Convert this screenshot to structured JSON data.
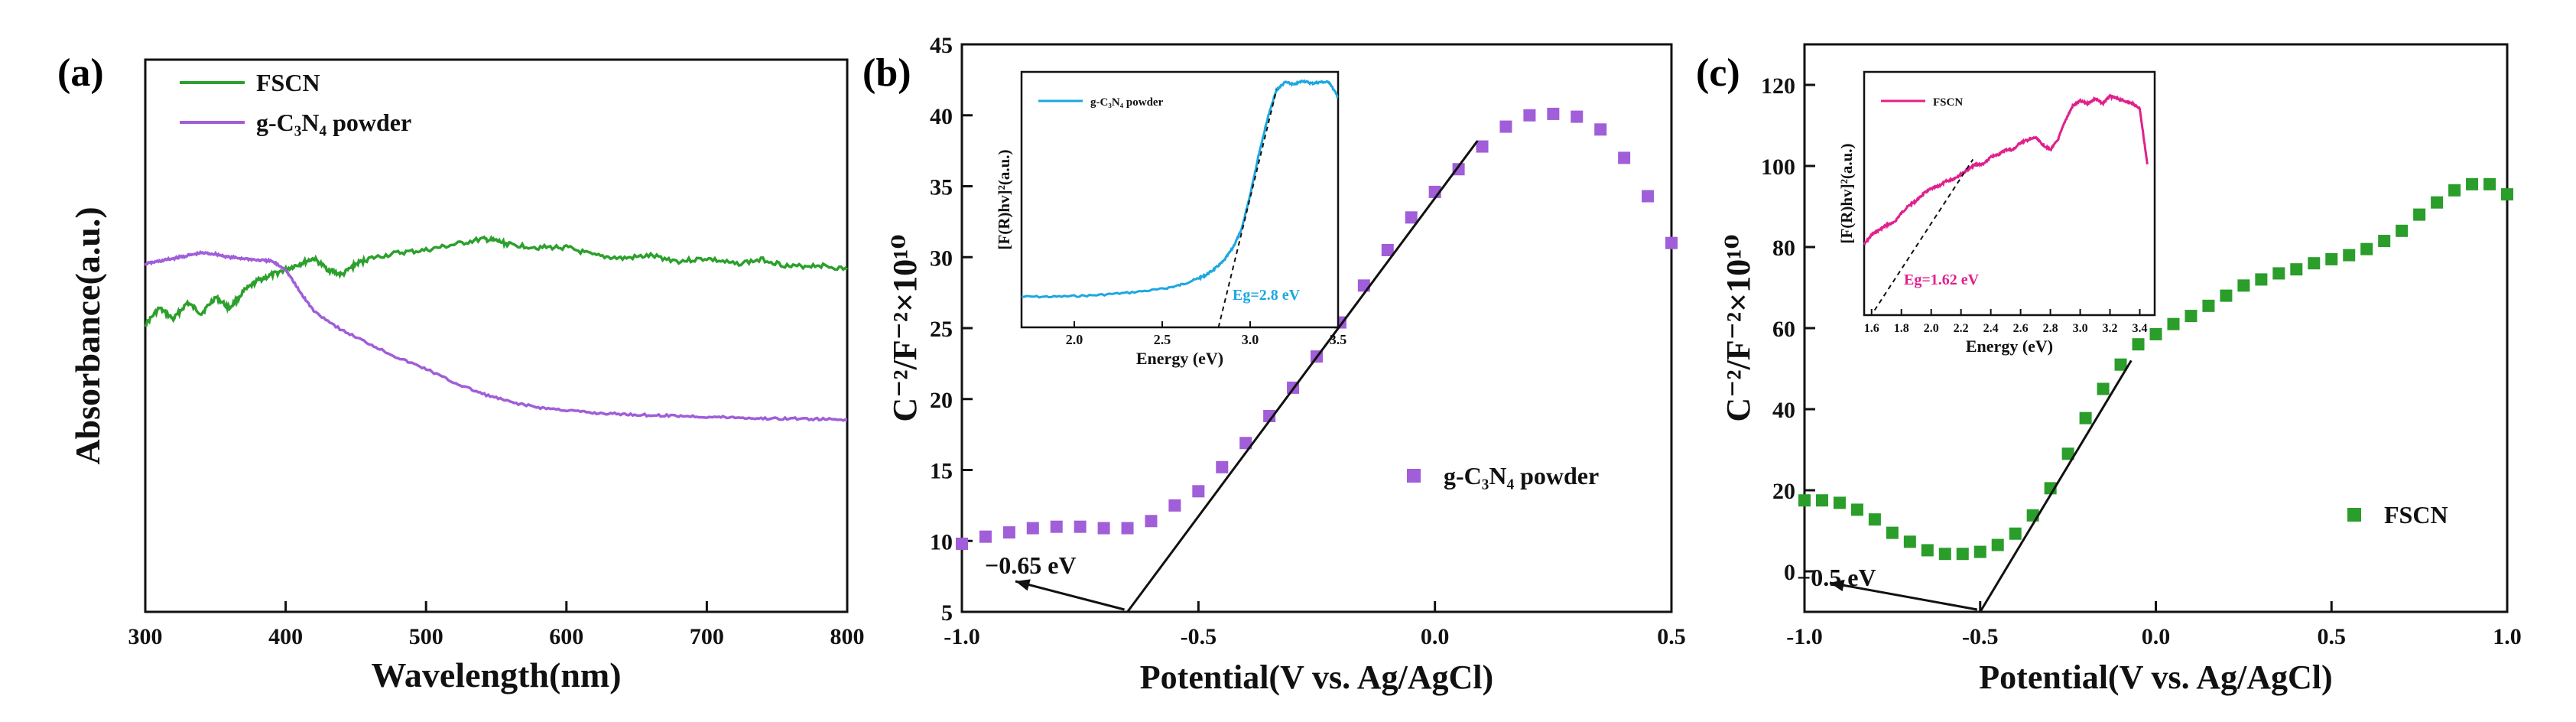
{
  "chart_data": [
    {
      "panel": "(a)",
      "type": "line",
      "xlabel": "Wavelength(nm)",
      "ylabel": "Absorbance(a.u.)",
      "xlim": [
        300,
        800
      ],
      "ylim": [
        0,
        1
      ],
      "x_ticks": [
        300,
        400,
        500,
        600,
        700,
        800
      ],
      "y_ticks_shown": false,
      "legend_position": "top-left",
      "series": [
        {
          "name": "FSCN",
          "color": "#2ca02c",
          "x": [
            300,
            310,
            320,
            330,
            340,
            350,
            360,
            370,
            380,
            390,
            400,
            410,
            420,
            430,
            440,
            450,
            460,
            480,
            500,
            520,
            540,
            550,
            560,
            580,
            600,
            620,
            640,
            660,
            680,
            700,
            720,
            740,
            760,
            780,
            800
          ],
          "y": [
            0.52,
            0.55,
            0.53,
            0.56,
            0.54,
            0.57,
            0.55,
            0.58,
            0.6,
            0.61,
            0.62,
            0.63,
            0.64,
            0.62,
            0.61,
            0.63,
            0.64,
            0.65,
            0.655,
            0.665,
            0.675,
            0.672,
            0.665,
            0.66,
            0.66,
            0.645,
            0.64,
            0.645,
            0.635,
            0.64,
            0.63,
            0.638,
            0.625,
            0.628,
            0.62
          ]
        },
        {
          "name": "g-C₃N₄ powder",
          "color": "#a05ed8",
          "x": [
            300,
            310,
            320,
            330,
            340,
            350,
            360,
            370,
            380,
            390,
            400,
            410,
            420,
            440,
            460,
            480,
            500,
            520,
            540,
            560,
            580,
            600,
            620,
            640,
            660,
            680,
            700,
            720,
            740,
            760,
            780,
            800
          ],
          "y": [
            0.63,
            0.635,
            0.64,
            0.645,
            0.65,
            0.648,
            0.642,
            0.64,
            0.637,
            0.635,
            0.62,
            0.58,
            0.545,
            0.51,
            0.485,
            0.46,
            0.44,
            0.415,
            0.395,
            0.38,
            0.37,
            0.365,
            0.36,
            0.358,
            0.356,
            0.355,
            0.353,
            0.352,
            0.35,
            0.35,
            0.349,
            0.348
          ]
        }
      ]
    },
    {
      "panel": "(b)",
      "type": "scatter",
      "xlabel": "Potential(V  vs. Ag/AgCl)",
      "ylabel": "C⁻²/F⁻²×10¹⁰",
      "xlim": [
        -1.0,
        0.5
      ],
      "ylim": [
        5,
        45
      ],
      "x_ticks": [
        -1.0,
        -0.5,
        0.0,
        0.5
      ],
      "x_tick_labels": [
        "-1.0",
        "-0.5",
        "0.0",
        "0.5"
      ],
      "y_ticks": [
        5,
        10,
        15,
        20,
        25,
        30,
        35,
        40,
        45
      ],
      "legend_position": "middle-right",
      "series": [
        {
          "name": "g-C₃N₄ powder",
          "color": "#a05ed8",
          "x": [
            -1.0,
            -0.95,
            -0.9,
            -0.85,
            -0.8,
            -0.75,
            -0.7,
            -0.65,
            -0.6,
            -0.55,
            -0.5,
            -0.45,
            -0.4,
            -0.35,
            -0.3,
            -0.25,
            -0.2,
            -0.15,
            -0.1,
            -0.05,
            0.0,
            0.05,
            0.1,
            0.15,
            0.2,
            0.25,
            0.3,
            0.35,
            0.4,
            0.45,
            0.5
          ],
          "y": [
            9.8,
            10.3,
            10.6,
            10.9,
            11.0,
            11.0,
            10.9,
            10.9,
            11.4,
            12.5,
            13.5,
            15.2,
            16.9,
            18.8,
            20.8,
            23.0,
            25.4,
            28.0,
            30.5,
            32.8,
            34.6,
            36.2,
            37.8,
            39.2,
            40.0,
            40.1,
            39.9,
            39.0,
            37.0,
            34.3,
            31.0
          ]
        }
      ],
      "tangent": {
        "x": [
          -0.65,
          0.09
        ],
        "y": [
          5,
          38.2
        ]
      },
      "annotation": {
        "text": "−0.65 eV",
        "point": [
          -0.65,
          5
        ]
      },
      "inset": {
        "type": "line",
        "xlabel": "Energy (eV)",
        "ylabel": "[F(R)hv]²(a.u.)",
        "xlim": [
          1.7,
          3.5
        ],
        "ylim": [
          0,
          1
        ],
        "x_ticks": [
          2.0,
          2.5,
          3.0,
          3.5
        ],
        "x_tick_labels": [
          "2.0",
          "2.5",
          "3.0",
          "3.5"
        ],
        "series_name": "g-C₃N₄ powder",
        "color": "#1ca7e0",
        "x": [
          1.7,
          1.9,
          2.1,
          2.3,
          2.5,
          2.6,
          2.7,
          2.75,
          2.8,
          2.85,
          2.9,
          2.95,
          3.0,
          3.05,
          3.1,
          3.15,
          3.2,
          3.25,
          3.3,
          3.35,
          3.4,
          3.45,
          3.5
        ],
        "y": [
          0.12,
          0.12,
          0.125,
          0.135,
          0.15,
          0.165,
          0.19,
          0.205,
          0.23,
          0.26,
          0.31,
          0.38,
          0.52,
          0.68,
          0.82,
          0.93,
          0.96,
          0.95,
          0.965,
          0.955,
          0.96,
          0.96,
          0.9
        ],
        "tangent": {
          "x": [
            2.82,
            3.15
          ],
          "y": [
            0.0,
            0.93
          ]
        },
        "annotation": "Eg=2.8 eV"
      }
    },
    {
      "panel": "(c)",
      "type": "scatter",
      "xlabel": "Potential(V  vs. Ag/AgCl)",
      "ylabel": "C⁻²/F⁻²×10¹⁰",
      "xlim": [
        -1.0,
        1.0
      ],
      "ylim": [
        -10,
        130
      ],
      "x_ticks": [
        -1.0,
        -0.5,
        0.0,
        0.5,
        1.0
      ],
      "x_tick_labels": [
        "-1.0",
        "-0.5",
        "0.0",
        "0.5",
        "1.0"
      ],
      "y_ticks": [
        0,
        20,
        40,
        60,
        80,
        100,
        120
      ],
      "legend_position": "middle-right",
      "series": [
        {
          "name": "FSCN",
          "color": "#2a9d2a",
          "x": [
            -1.0,
            -0.95,
            -0.9,
            -0.85,
            -0.8,
            -0.75,
            -0.7,
            -0.65,
            -0.6,
            -0.55,
            -0.5,
            -0.45,
            -0.4,
            -0.35,
            -0.3,
            -0.25,
            -0.2,
            -0.15,
            -0.1,
            -0.05,
            0.0,
            0.05,
            0.1,
            0.15,
            0.2,
            0.25,
            0.3,
            0.35,
            0.4,
            0.45,
            0.5,
            0.55,
            0.6,
            0.65,
            0.7,
            0.75,
            0.8,
            0.85,
            0.9,
            0.95,
            1.0
          ],
          "y": [
            17.5,
            17.5,
            16.9,
            15.2,
            12.8,
            9.5,
            7.3,
            5.2,
            4.3,
            4.3,
            4.8,
            6.5,
            9.3,
            13.8,
            20.5,
            29.0,
            37.8,
            45.0,
            51.0,
            56.0,
            58.5,
            61.0,
            63.0,
            65.5,
            68.0,
            70.5,
            72.0,
            73.5,
            74.5,
            76.0,
            77.0,
            78.0,
            79.5,
            81.5,
            84.0,
            88.0,
            91.0,
            94.0,
            95.5,
            95.5,
            93.0
          ]
        }
      ],
      "tangent": {
        "x": [
          -0.5,
          -0.07
        ],
        "y": [
          -10,
          52
        ]
      },
      "annotation": {
        "text": "−0.5 eV",
        "point": [
          -0.5,
          -10
        ]
      },
      "inset": {
        "type": "line",
        "xlabel": "Energy (eV)",
        "ylabel": "[F(R)hv]²(a.u.)",
        "xlim": [
          1.55,
          3.5
        ],
        "ylim": [
          0,
          1
        ],
        "x_ticks": [
          1.6,
          1.8,
          2.0,
          2.2,
          2.4,
          2.6,
          2.8,
          3.0,
          3.2,
          3.4
        ],
        "x_tick_labels": [
          "1.6",
          "1.8",
          "2.0",
          "2.2",
          "2.4",
          "2.6",
          "2.8",
          "3.0",
          "3.2",
          "3.4"
        ],
        "series_name": "FSCN",
        "color": "#e0208c",
        "x": [
          1.55,
          1.6,
          1.65,
          1.7,
          1.75,
          1.8,
          1.85,
          1.9,
          1.95,
          2.0,
          2.05,
          2.1,
          2.15,
          2.2,
          2.25,
          2.3,
          2.35,
          2.4,
          2.45,
          2.5,
          2.55,
          2.6,
          2.65,
          2.7,
          2.75,
          2.8,
          2.85,
          2.9,
          2.95,
          3.0,
          3.05,
          3.1,
          3.15,
          3.2,
          3.25,
          3.3,
          3.35,
          3.4,
          3.45
        ],
        "y": [
          0.29,
          0.33,
          0.35,
          0.37,
          0.38,
          0.42,
          0.45,
          0.47,
          0.5,
          0.52,
          0.53,
          0.55,
          0.56,
          0.58,
          0.6,
          0.62,
          0.62,
          0.65,
          0.66,
          0.68,
          0.68,
          0.71,
          0.72,
          0.73,
          0.7,
          0.68,
          0.72,
          0.8,
          0.86,
          0.88,
          0.87,
          0.89,
          0.87,
          0.9,
          0.89,
          0.88,
          0.87,
          0.85,
          0.62
        ],
        "tangent": {
          "x": [
            1.62,
            2.28
          ],
          "y": [
            0.02,
            0.64
          ]
        },
        "annotation": "Eg=1.62 eV"
      }
    }
  ]
}
